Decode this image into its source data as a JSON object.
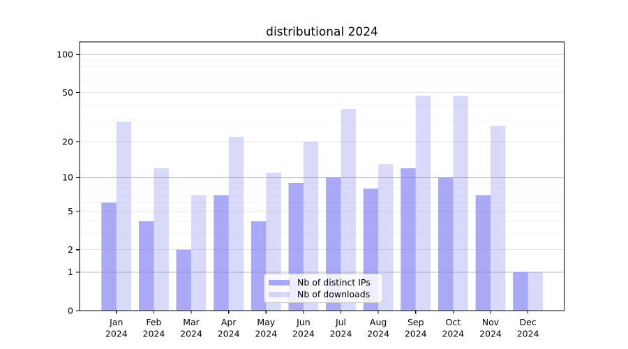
{
  "chart_data": {
    "type": "bar",
    "title": "distributional 2024",
    "categories": [
      "Jan 2024",
      "Feb 2024",
      "Mar 2024",
      "Apr 2024",
      "May 2024",
      "Jun 2024",
      "Jul 2024",
      "Aug 2024",
      "Sep 2024",
      "Oct 2024",
      "Nov 2024",
      "Dec 2024"
    ],
    "series": [
      {
        "name": "Nb of distinct IPs",
        "color": "#8080f0",
        "opacity": 0.68,
        "values": [
          6,
          4,
          2,
          7,
          4,
          9,
          10,
          8,
          12,
          10,
          7,
          1
        ]
      },
      {
        "name": "Nb of downloads",
        "color": "#8080f0",
        "opacity": 0.3,
        "values": [
          29,
          12,
          7,
          22,
          11,
          20,
          37,
          13,
          47,
          47,
          27,
          1
        ]
      }
    ],
    "xlabel": "",
    "ylabel": "",
    "yscale": "log10(value+1)",
    "yticks": [
      0,
      1,
      2,
      5,
      10,
      20,
      50,
      100
    ],
    "yticks_minor": [
      3,
      4,
      6,
      7,
      8,
      9,
      30,
      40,
      60,
      70,
      80,
      90
    ],
    "ylim": [
      0,
      126
    ],
    "grid": "on",
    "legend": {
      "position": "lower center"
    }
  },
  "colors": {
    "bar_base": "#8080f0",
    "grid_decade": "#bdbdbd",
    "grid_labeled": "#e8e8e8",
    "grid_minor": "#f3f3f3",
    "axis": "#000000",
    "text": "#000000",
    "legend_border": "#cccccc",
    "legend_background": "rgba(255,255,255,0.8)",
    "background": "#ffffff"
  }
}
